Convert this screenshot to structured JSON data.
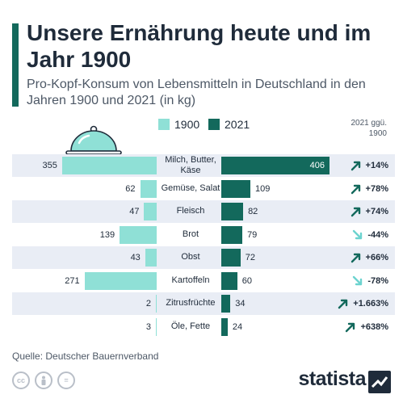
{
  "title": "Unsere Ernährung heute und im Jahr 1900",
  "subtitle": "Pro-Kopf-Konsum von Lebensmitteln in Deutschland in den Jahren 1900 und 2021 (in kg)",
  "change_header": "2021 ggü. 1900",
  "source": "Quelle: Deutscher Bauernverband",
  "brand": "statista",
  "cc_icons": [
    "cc-icon",
    "person-icon",
    "equals-icon"
  ],
  "colors": {
    "accent": "#13695c",
    "series_1900": "#8fe0d6",
    "series_2021": "#13695c",
    "row_shade": "#e9edf5",
    "up_arrow": "#13695c",
    "down_arrow": "#6cd3cf"
  },
  "chart_data": {
    "type": "bar",
    "orientation": "horizontal-butterfly",
    "legend": [
      "1900",
      "2021"
    ],
    "categories": [
      "Milch, Butter, Käse",
      "Gemüse, Salat",
      "Fleisch",
      "Brot",
      "Obst",
      "Kartoffeln",
      "Zitrusfrüchte",
      "Öle, Fette"
    ],
    "series": [
      {
        "name": "1900",
        "values": [
          355,
          62,
          47,
          139,
          43,
          271,
          2,
          3
        ]
      },
      {
        "name": "2021",
        "values": [
          406,
          109,
          82,
          79,
          72,
          60,
          34,
          24
        ]
      }
    ],
    "change": [
      "+14%",
      "+78%",
      "+74%",
      "-44%",
      "+66%",
      "-78%",
      "+1.663%",
      "+638%"
    ],
    "direction": [
      "up",
      "up",
      "up",
      "down",
      "up",
      "down",
      "up",
      "up"
    ],
    "ylim": [
      0,
      406
    ]
  }
}
